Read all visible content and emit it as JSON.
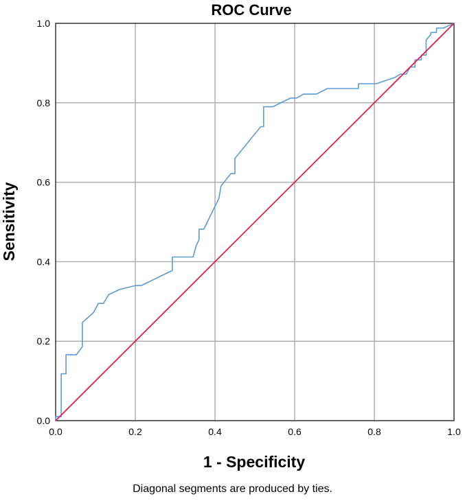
{
  "chart_data": {
    "type": "line",
    "title": "ROC Curve",
    "xlabel": "1 - Specificity",
    "ylabel": "Sensitivity",
    "xlim": [
      0,
      1
    ],
    "ylim": [
      0,
      1
    ],
    "xticks": [
      "0.0",
      "0.2",
      "0.4",
      "0.6",
      "0.8",
      "1.0"
    ],
    "yticks": [
      "0.0",
      "0.2",
      "0.4",
      "0.6",
      "0.8",
      "1.0"
    ],
    "grid": true,
    "series": [
      {
        "color": "#5b9bd5",
        "points": [
          [
            0.0,
            0.0
          ],
          [
            0.0,
            0.01
          ],
          [
            0.014,
            0.01
          ],
          [
            0.014,
            0.118
          ],
          [
            0.026,
            0.118
          ],
          [
            0.026,
            0.166
          ],
          [
            0.052,
            0.166
          ],
          [
            0.067,
            0.186
          ],
          [
            0.067,
            0.247
          ],
          [
            0.095,
            0.272
          ],
          [
            0.107,
            0.295
          ],
          [
            0.12,
            0.295
          ],
          [
            0.133,
            0.317
          ],
          [
            0.16,
            0.33
          ],
          [
            0.2,
            0.34
          ],
          [
            0.215,
            0.34
          ],
          [
            0.293,
            0.378
          ],
          [
            0.293,
            0.412
          ],
          [
            0.345,
            0.412
          ],
          [
            0.353,
            0.44
          ],
          [
            0.36,
            0.456
          ],
          [
            0.36,
            0.482
          ],
          [
            0.372,
            0.482
          ],
          [
            0.41,
            0.56
          ],
          [
            0.415,
            0.59
          ],
          [
            0.44,
            0.622
          ],
          [
            0.45,
            0.622
          ],
          [
            0.45,
            0.66
          ],
          [
            0.515,
            0.74
          ],
          [
            0.522,
            0.74
          ],
          [
            0.522,
            0.79
          ],
          [
            0.545,
            0.79
          ],
          [
            0.59,
            0.812
          ],
          [
            0.605,
            0.812
          ],
          [
            0.622,
            0.822
          ],
          [
            0.655,
            0.822
          ],
          [
            0.682,
            0.836
          ],
          [
            0.76,
            0.836
          ],
          [
            0.76,
            0.848
          ],
          [
            0.805,
            0.848
          ],
          [
            0.852,
            0.864
          ],
          [
            0.865,
            0.872
          ],
          [
            0.88,
            0.872
          ],
          [
            0.89,
            0.89
          ],
          [
            0.902,
            0.89
          ],
          [
            0.902,
            0.908
          ],
          [
            0.918,
            0.908
          ],
          [
            0.918,
            0.92
          ],
          [
            0.93,
            0.92
          ],
          [
            0.93,
            0.958
          ],
          [
            0.942,
            0.972
          ],
          [
            0.942,
            0.977
          ],
          [
            0.956,
            0.977
          ],
          [
            0.956,
            0.988
          ],
          [
            0.975,
            0.988
          ],
          [
            0.975,
            0.989
          ],
          [
            1.0,
            1.0
          ]
        ]
      },
      {
        "color": "#e0204a",
        "points": [
          [
            0,
            0
          ],
          [
            1,
            1
          ]
        ]
      }
    ]
  },
  "footnote": "Diagonal segments are produced by ties."
}
